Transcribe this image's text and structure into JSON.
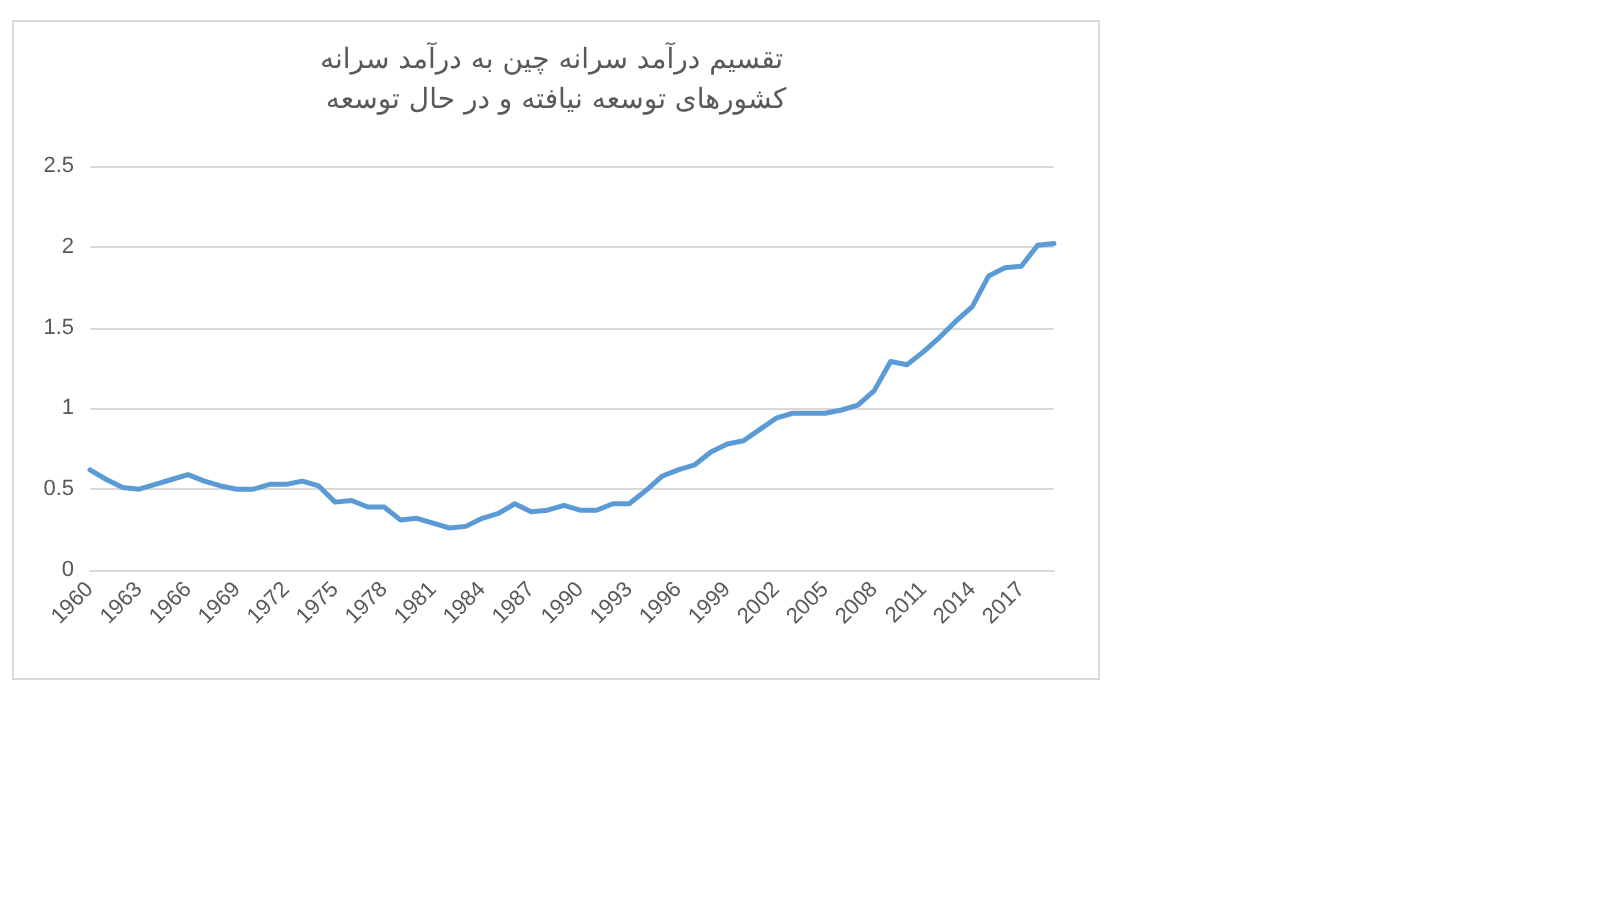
{
  "chart_data": {
    "type": "line",
    "title": "تقسیم درآمد سرانه چین به درآمد سرانه کشورهای توسعه نیافته و در حال توسعه",
    "categories": [
      "1960",
      null,
      null,
      "1963",
      null,
      null,
      "1966",
      null,
      null,
      "1969",
      null,
      null,
      "1972",
      null,
      null,
      "1975",
      null,
      null,
      "1978",
      null,
      null,
      "1981",
      null,
      null,
      "1984",
      null,
      null,
      "1987",
      null,
      null,
      "1990",
      null,
      null,
      "1993",
      null,
      null,
      "1996",
      null,
      null,
      "1999",
      null,
      null,
      "2002",
      null,
      null,
      "2005",
      null,
      null,
      "2008",
      null,
      null,
      "2011",
      null,
      null,
      "2014",
      null,
      null,
      "2017",
      null,
      null
    ],
    "series": [
      {
        "color": "#5b9bd5",
        "values": [
          0.62,
          0.56,
          0.51,
          0.5,
          0.53,
          0.56,
          0.59,
          0.55,
          0.52,
          0.5,
          0.5,
          0.53,
          0.53,
          0.55,
          0.52,
          0.42,
          0.43,
          0.39,
          0.39,
          0.31,
          0.32,
          0.29,
          0.26,
          0.27,
          0.32,
          0.35,
          0.41,
          0.36,
          0.37,
          0.4,
          0.37,
          0.37,
          0.41,
          0.41,
          0.49,
          0.58,
          0.62,
          0.65,
          0.73,
          0.78,
          0.8,
          0.87,
          0.94,
          0.97,
          0.97,
          0.97,
          0.99,
          1.02,
          1.11,
          1.29,
          1.27,
          1.35,
          1.44,
          1.54,
          1.63,
          1.82,
          1.87,
          1.88,
          2.01,
          2.02
        ]
      }
    ],
    "ylim": [
      0,
      2.5
    ],
    "yticks": [
      0,
      0.5,
      1,
      1.5,
      2,
      2.5
    ],
    "grid": "y",
    "marker": "none",
    "line_style": "solid"
  }
}
